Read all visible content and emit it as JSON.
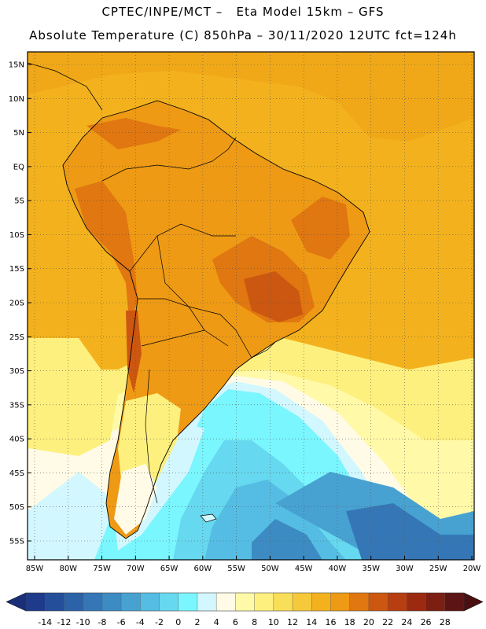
{
  "header": {
    "line1": "CPTEC/INPE/MCT –   Eta Model 15km – GFS",
    "line2": "Absolute Temperature (C) 850hPa – 30/11/2020 12UTC fct=124h"
  },
  "map": {
    "lat_labels": [
      "15N",
      "10N",
      "5N",
      "EQ",
      "5S",
      "10S",
      "15S",
      "20S",
      "25S",
      "30S",
      "35S",
      "40S",
      "45S",
      "50S",
      "55S"
    ],
    "lon_labels": [
      "85W",
      "80W",
      "75W",
      "70W",
      "65W",
      "60W",
      "55W",
      "50W",
      "45W",
      "40W",
      "35W",
      "30W",
      "25W",
      "20W"
    ],
    "lat_values": [
      15,
      10,
      5,
      0,
      -5,
      -10,
      -15,
      -20,
      -25,
      -30,
      -35,
      -40,
      -45,
      -50,
      -55
    ],
    "lon_values": [
      -85,
      -80,
      -75,
      -70,
      -65,
      -60,
      -55,
      -50,
      -45,
      -40,
      -35,
      -30,
      -25,
      -20
    ],
    "grid": true,
    "gridline_style": "dotted"
  },
  "colorbar": {
    "labels": [
      "-14",
      "-12",
      "-10",
      "-8",
      "-6",
      "-4",
      "-2",
      "0",
      "2",
      "4",
      "6",
      "8",
      "10",
      "12",
      "14",
      "16",
      "18",
      "20",
      "22",
      "24",
      "26",
      "28"
    ],
    "colors": [
      "#1e3a8a",
      "#244e99",
      "#2c62a8",
      "#3577b6",
      "#3d8bc3",
      "#47a2d2",
      "#55bde3",
      "#66d8ef",
      "#7af6ff",
      "#d2f7ff",
      "#fffbe6",
      "#fff9a8",
      "#fdf07e",
      "#f9de58",
      "#f5c93a",
      "#f3b21d",
      "#ee9a15",
      "#e07710",
      "#cc5710",
      "#b63e10",
      "#9c2a10",
      "#7c1e12",
      "#5c1414"
    ],
    "extend_left_color": "#1a2f78",
    "extend_right_color": "#4a0f10"
  }
}
